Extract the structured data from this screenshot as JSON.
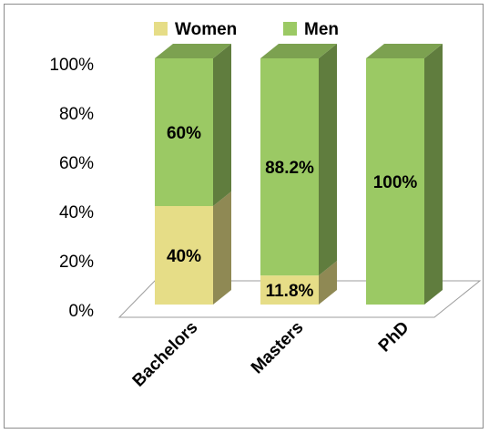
{
  "chart_data": {
    "type": "bar",
    "stacked": true,
    "percent": true,
    "style": "3d",
    "categories": [
      "Bachelors",
      "Masters",
      "PhD"
    ],
    "series": [
      {
        "name": "Women",
        "values": [
          40,
          11.8,
          0
        ],
        "labels": [
          "40%",
          "11.8%",
          ""
        ],
        "color": "#e6dd87"
      },
      {
        "name": "Men",
        "values": [
          60,
          88.2,
          100
        ],
        "labels": [
          "60%",
          "88.2%",
          "100%"
        ],
        "color": "#9bc964"
      }
    ],
    "ylim": [
      0,
      100
    ],
    "yticks": [
      "0%",
      "20%",
      "40%",
      "60%",
      "80%",
      "100%"
    ],
    "legend_position": "top",
    "grid": false
  }
}
